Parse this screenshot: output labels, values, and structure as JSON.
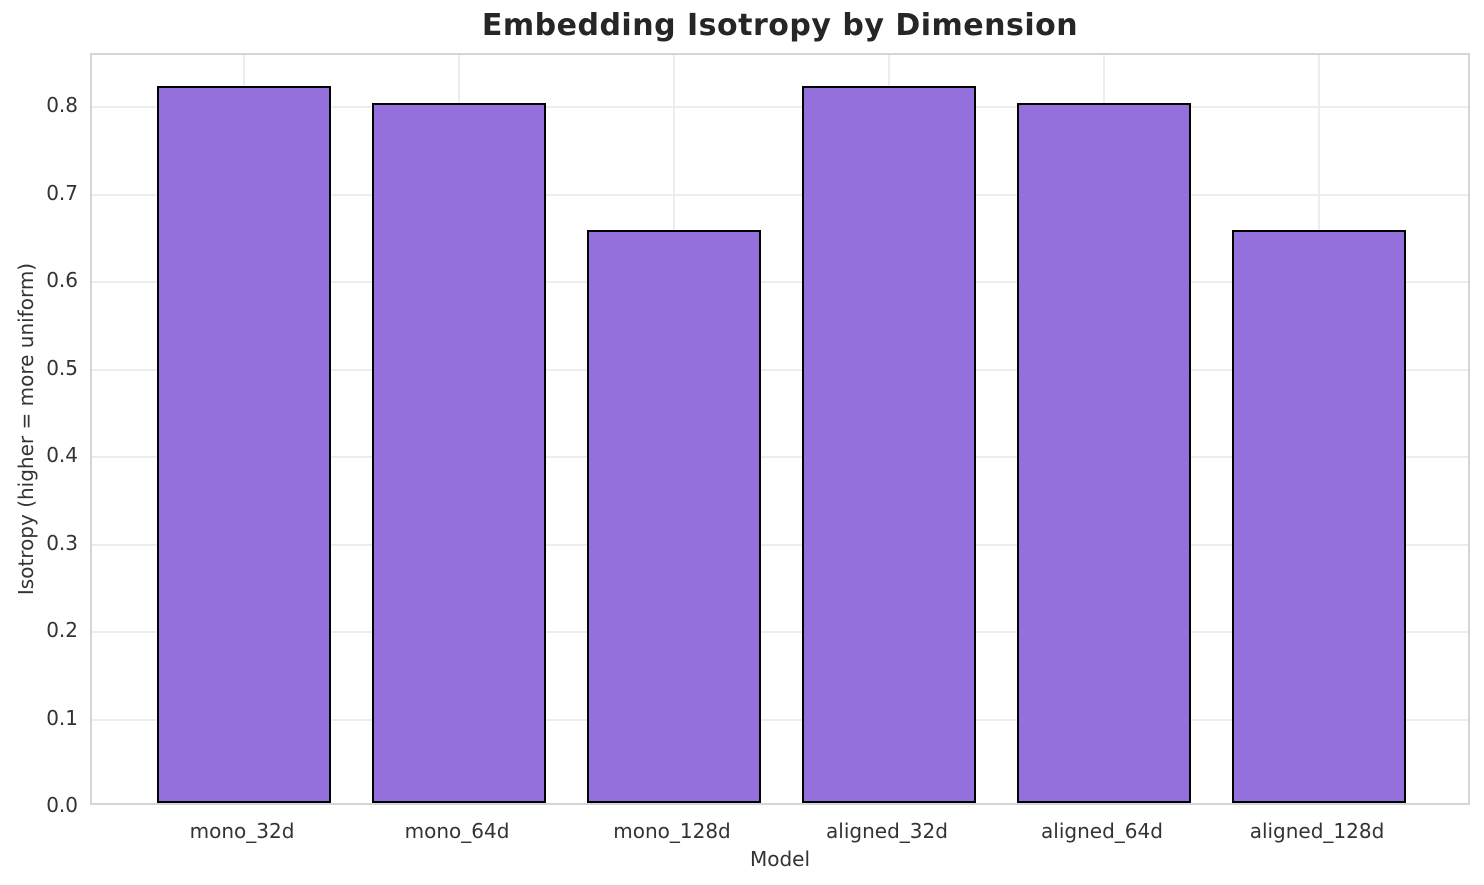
{
  "chart_data": {
    "type": "bar",
    "title": "Embedding Isotropy by Dimension",
    "xlabel": "Model",
    "ylabel": "Isotropy (higher = more uniform)",
    "categories": [
      "mono_32d",
      "mono_64d",
      "mono_128d",
      "aligned_32d",
      "aligned_64d",
      "aligned_128d"
    ],
    "values": [
      0.82,
      0.8,
      0.655,
      0.82,
      0.8,
      0.655
    ],
    "ylim": [
      0,
      0.86
    ],
    "yticks": [
      0.0,
      0.1,
      0.2,
      0.3,
      0.4,
      0.5,
      0.6,
      0.7,
      0.8
    ],
    "ytick_labels": [
      "0.0",
      "0.1",
      "0.2",
      "0.3",
      "0.4",
      "0.5",
      "0.6",
      "0.7",
      "0.8"
    ],
    "grid": true,
    "legend_position": "none",
    "colors": {
      "bar_fill": "#9370DB",
      "bar_edge": "#000000",
      "grid": "#ededed",
      "spine": "#d5d5d5",
      "title_text": "#262626",
      "tick_text": "#333333"
    }
  }
}
